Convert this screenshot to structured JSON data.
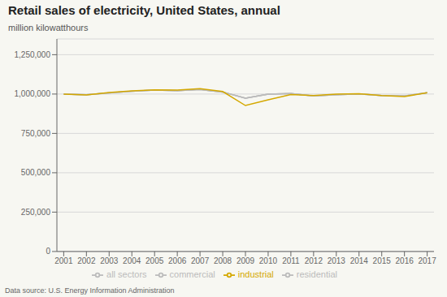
{
  "chart_data": {
    "type": "line",
    "title": "Retail sales of electricity, United States, annual",
    "ylabel": "million kilowatthours",
    "annotations": [
      "Data source: U.S. Energy Information Administration"
    ],
    "x": [
      2001,
      2002,
      2003,
      2004,
      2005,
      2006,
      2007,
      2008,
      2009,
      2010,
      2011,
      2012,
      2013,
      2014,
      2015,
      2016,
      2017
    ],
    "series": [
      {
        "name": "all sectors",
        "color": "#bbbbbb",
        "values": [
          999000,
          995000,
          1007000,
          1018000,
          1025000,
          1022000,
          1029000,
          1013000,
          974000,
          999000,
          1003000,
          988000,
          996000,
          1001000,
          991000,
          988000,
          1008000
        ]
      },
      {
        "name": "residential",
        "color": "#bbbbbb",
        "values": [
          999000,
          995000,
          1007000,
          1018000,
          1025000,
          1022000,
          1029000,
          1013000,
          974000,
          999000,
          1003000,
          988000,
          996000,
          1001000,
          991000,
          988000,
          1008000
        ]
      },
      {
        "name": "commercial",
        "color": "#bbbbbb",
        "values": [
          999000,
          995000,
          1007000,
          1018000,
          1025000,
          1022000,
          1029000,
          1013000,
          974000,
          999000,
          1003000,
          988000,
          996000,
          1001000,
          991000,
          988000,
          1008000
        ]
      },
      {
        "name": "industrial",
        "color": "#d4a800",
        "values": [
          999000,
          994000,
          1010000,
          1020000,
          1027000,
          1025000,
          1034000,
          1016000,
          927000,
          963000,
          997000,
          991000,
          999000,
          1002000,
          991000,
          984000,
          1009000
        ]
      }
    ],
    "xlim": [
      2000.7,
      2017.3
    ],
    "xticks": [
      2001,
      2002,
      2003,
      2004,
      2005,
      2006,
      2007,
      2008,
      2009,
      2010,
      2011,
      2012,
      2013,
      2014,
      2015,
      2016,
      2017
    ],
    "ylim": [
      0,
      1350000
    ],
    "yticks": [
      0,
      {
        "value": 250000,
        "label": "250,000"
      },
      {
        "value": 500000,
        "label": "500,000"
      },
      {
        "value": 750000,
        "label": "750,000"
      },
      {
        "value": 1000000,
        "label": "1,000,000"
      },
      {
        "value": 1250000,
        "label": "1,250,000"
      }
    ],
    "grid": true,
    "legend": "bottom"
  }
}
